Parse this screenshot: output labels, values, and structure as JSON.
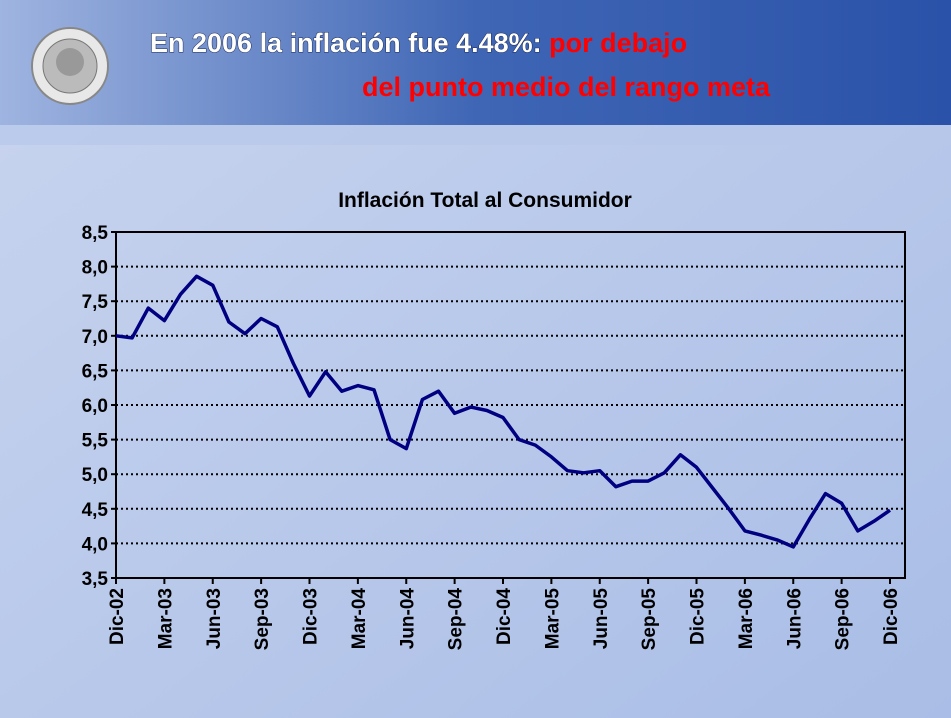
{
  "header": {
    "title_line1": "En 2006 la inflación fue 4.48%: ",
    "title_line1_highlight": "por debajo",
    "title_line2": "del punto medio del rango meta"
  },
  "chart_data": {
    "type": "line",
    "title": "Inflación Total al Consumidor",
    "categories": [
      "Dic-02",
      null,
      null,
      "Mar-03",
      null,
      null,
      "Jun-03",
      null,
      null,
      "Sep-03",
      null,
      null,
      "Dic-03",
      null,
      null,
      "Mar-04",
      null,
      null,
      "Jun-04",
      null,
      null,
      "Sep-04",
      null,
      null,
      "Dic-04",
      null,
      null,
      "Mar-05",
      null,
      null,
      "Jun-05",
      null,
      null,
      "Sep-05",
      null,
      null,
      "Dic-05",
      null,
      null,
      "Mar-06",
      null,
      null,
      "Jun-06",
      null,
      null,
      "Sep-06",
      null,
      null,
      "Dic-06"
    ],
    "series": [
      {
        "name": "Inflación Total al Consumidor",
        "color": "#000080",
        "values": [
          7.0,
          6.97,
          7.4,
          7.22,
          7.6,
          7.86,
          7.73,
          7.2,
          7.03,
          7.25,
          7.13,
          6.6,
          6.13,
          6.48,
          6.2,
          6.28,
          6.22,
          5.5,
          5.37,
          6.08,
          6.2,
          5.88,
          5.97,
          5.92,
          5.82,
          5.5,
          5.42,
          5.25,
          5.05,
          5.02,
          5.05,
          4.82,
          4.9,
          4.9,
          5.02,
          5.28,
          5.1,
          4.8,
          4.5,
          4.18,
          4.12,
          4.05,
          3.95,
          4.35,
          4.72,
          4.58,
          4.18,
          4.32,
          4.48
        ]
      }
    ],
    "ylim": [
      3.5,
      8.5
    ],
    "yticks": [
      {
        "value": 3.5,
        "label": "3,5"
      },
      {
        "value": 4.0,
        "label": "4,0"
      },
      {
        "value": 4.5,
        "label": "4,5"
      },
      {
        "value": 5.0,
        "label": "5,0"
      },
      {
        "value": 5.5,
        "label": "5,5"
      },
      {
        "value": 6.0,
        "label": "6,0"
      },
      {
        "value": 6.5,
        "label": "6,5"
      },
      {
        "value": 7.0,
        "label": "7,0"
      },
      {
        "value": 7.5,
        "label": "7,5"
      },
      {
        "value": 8.0,
        "label": "8,0"
      },
      {
        "value": 8.5,
        "label": "8,5"
      }
    ],
    "grid": true
  }
}
